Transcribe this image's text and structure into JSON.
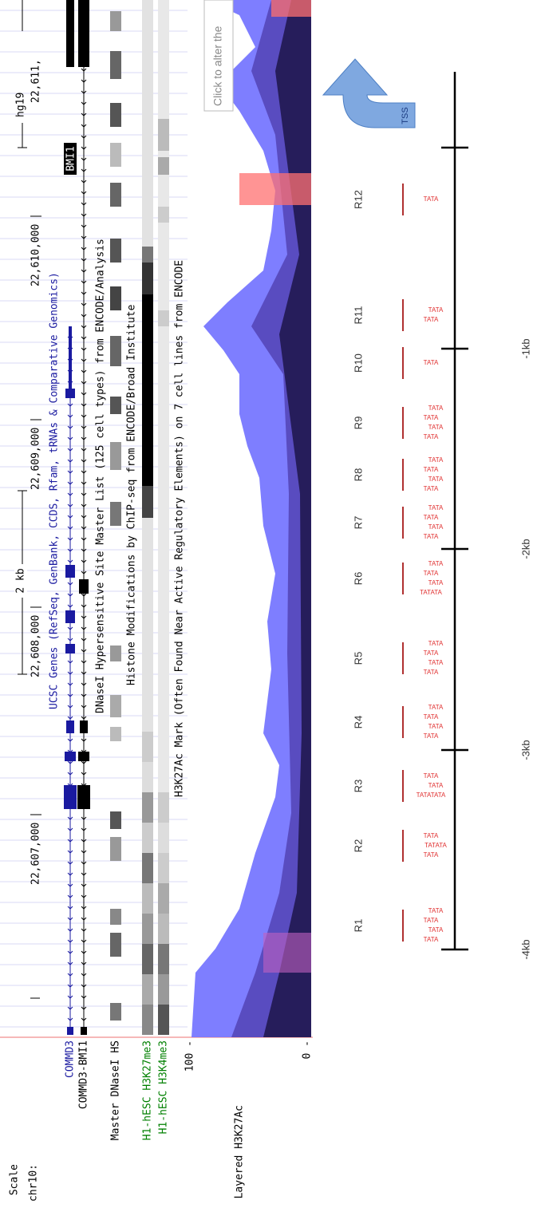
{
  "labels": {
    "scale": "Scale",
    "chrom": "chr10:",
    "commd3": "COMMD3",
    "commd3_bmi1": "COMMD3-BMI1",
    "dnase": "Master DNaseI HS",
    "h3k27me3": "H1-hESC H3K27me3",
    "h3k4me3": "H1-hESC H3K4me3",
    "max": "100 -",
    "layered": "Layered H3K27Ac",
    "min": "0 -"
  },
  "scale_bar": "2 kb",
  "assembly": "hg19",
  "coordinates": [
    "22,607,000",
    "22,608,000",
    "22,609,000",
    "22,610,000",
    "22,611,"
  ],
  "track_titles": {
    "genes": "UCSC Genes (RefSeq, GenBank, CCDS, Rfam, tRNAs & Comparative Genomics)",
    "dnase": "DNaseI Hypersensitive Site Master List (125 cell types) from ENCODE/Analysis",
    "histone": "Histone Modifications by ChIP-seq from ENCODE/Broad Institute",
    "h3k27ac": "H3K27Ac Mark (Often Found Near Active Regulatory Elements) on 7 cell lines from ENCODE"
  },
  "gene_label": "BMI1",
  "tooltip": "Click to alter the",
  "tss": "TSS",
  "regions": [
    {
      "label": "R1",
      "tata": [
        "TATA",
        "TATA",
        "TATA",
        "TATA"
      ]
    },
    {
      "label": "R2",
      "tata": [
        "TATA",
        "TATATA",
        "TATA"
      ]
    },
    {
      "label": "R3",
      "tata": [
        "TATATATA",
        "TATA",
        "TATA"
      ]
    },
    {
      "label": "R4",
      "tata": [
        "TATA",
        "TATA",
        "TATA",
        "TATA"
      ]
    },
    {
      "label": "R5",
      "tata": [
        "TATA",
        "TATA",
        "TATA",
        "TATA"
      ]
    },
    {
      "label": "R6",
      "tata": [
        "TATATA",
        "TATA",
        "TATA",
        "TATA"
      ]
    },
    {
      "label": "R7",
      "tata": [
        "TATA",
        "TATA",
        "TATA",
        "TATA"
      ]
    },
    {
      "label": "R8",
      "tata": [
        "TATA",
        "TATA",
        "TATA",
        "TATA"
      ]
    },
    {
      "label": "R9",
      "tata": [
        "TATA",
        "TATA",
        "TATA",
        "TATA"
      ]
    },
    {
      "label": "R10",
      "tata": [
        "TATA"
      ]
    },
    {
      "label": "R11",
      "tata": [
        "TATA",
        "TATA"
      ]
    },
    {
      "label": "R12",
      "tata": [
        "TATA"
      ]
    }
  ],
  "distances": [
    "-4kb",
    "-3kb",
    "-2kb",
    "-1kb"
  ]
}
